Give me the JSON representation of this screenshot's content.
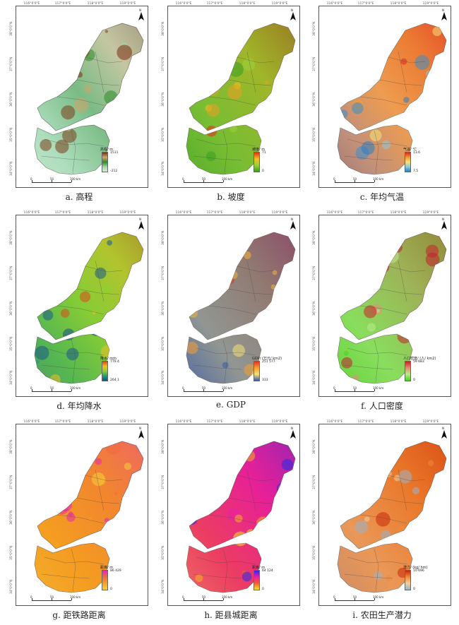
{
  "coords": {
    "top": [
      "116°0'0\"E",
      "117°0'0\"E",
      "118°0'0\"E",
      "119°0'0\"E"
    ],
    "left": [
      "38°0'0\"N",
      "37°0'0\"N",
      "36°0'0\"N",
      "35°0'0\"N",
      "34°0'0\"N"
    ]
  },
  "north_label": "N",
  "scale_labels": [
    "0",
    "50",
    "100 km"
  ],
  "panels": [
    {
      "caption": "a. 高程",
      "legend_title": "高程/ m",
      "legend_max": "1511",
      "legend_min": "-212",
      "legend_colors": [
        "#7a2e12",
        "#d2a46a",
        "#2d8a2a",
        "#9ed6a5",
        "#d8f0d0"
      ],
      "base_color": "#b9e3cf",
      "accent_color": "#7b3e1a"
    },
    {
      "caption": "b. 坡度",
      "legend_title": "坡度/ m",
      "legend_max": "71",
      "legend_min": "0",
      "legend_colors": [
        "#e82a16",
        "#f5c023",
        "#9bd13a",
        "#3a9e22"
      ],
      "base_color": "#5aad2e",
      "accent_color": "#e8a022"
    },
    {
      "caption": "c. 年均气温",
      "legend_title": "气温/ ℃",
      "legend_max": "13.6",
      "legend_min": "7.5",
      "legend_colors": [
        "#d92626",
        "#f09a3a",
        "#f4e37a",
        "#8fc7d9",
        "#2a7ec2"
      ],
      "base_color": "#e9622e",
      "accent_color": "#3c8ec8"
    },
    {
      "caption": "d. 年均降水",
      "legend_title": "降水/ mm",
      "legend_max": "779.4",
      "legend_min": "264.1",
      "legend_colors": [
        "#d94a1a",
        "#f0c020",
        "#8fd030",
        "#20a070",
        "#1a4f8a"
      ],
      "base_color": "#7ec83a",
      "accent_color": "#1a5a8a"
    },
    {
      "caption": "e. GDP",
      "legend_title": "GDP/ (万元/ km2)",
      "legend_max": "251 577",
      "legend_min": "333",
      "legend_colors": [
        "#e83020",
        "#f5a030",
        "#f5e07a",
        "#3a5aa8"
      ],
      "base_color": "#3f5aa6",
      "accent_color": "#f2b43c"
    },
    {
      "caption": "f. 人口密度",
      "legend_title": "人口密度/ (人/ km2)",
      "legend_max": "59 683",
      "legend_min": "0",
      "legend_colors": [
        "#c8202a",
        "#e88a7a",
        "#b8ec8a",
        "#4ad020"
      ],
      "base_color": "#62d23a",
      "accent_color": "#c02030"
    },
    {
      "caption": "g. 距铁路距离",
      "legend_title": "距离/ m",
      "legend_max": "86 429",
      "legend_min": "0",
      "legend_colors": [
        "#e820c8",
        "#f06a40",
        "#f5a020",
        "#f5d040"
      ],
      "base_color": "#f39a22",
      "accent_color": "#e52aa8"
    },
    {
      "caption": "h. 距县城距离",
      "legend_title": "距离/ m",
      "legend_max": "64 124",
      "legend_min": "0",
      "legend_colors": [
        "#2a2ae8",
        "#e820a8",
        "#f06030",
        "#f5e030"
      ],
      "base_color": "#e8208a",
      "accent_color": "#f5b020"
    },
    {
      "caption": "i. 农田生产潜力",
      "legend_title": "潜力/ (kg/ hm)",
      "legend_max": "10 696",
      "legend_min": "0",
      "legend_colors": [
        "#c8280a",
        "#f08a3a",
        "#f0d0a0",
        "#9ab0c8"
      ],
      "base_color": "#e5691c",
      "accent_color": "#9fb3c4"
    }
  ]
}
